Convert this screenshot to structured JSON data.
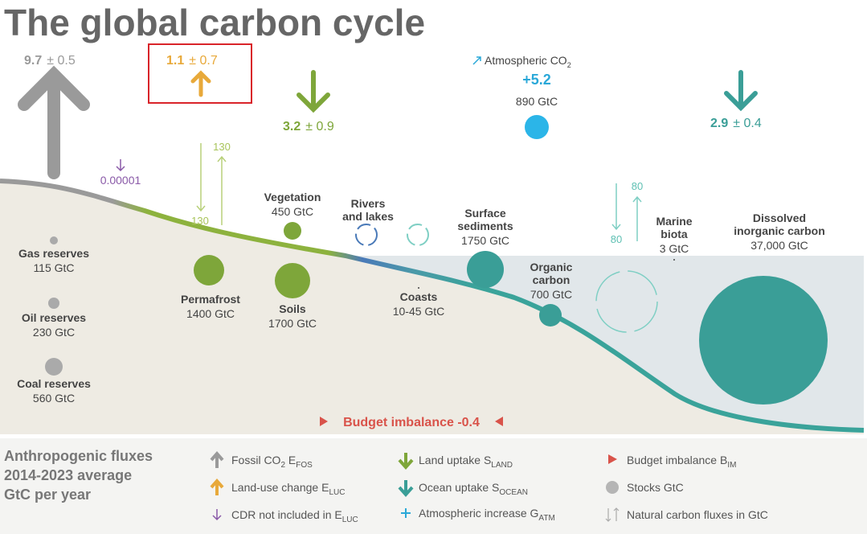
{
  "title": "The global carbon cycle",
  "fluxes": [
    {
      "value": "9.7",
      "uncertainty": "± 0.5"
    },
    {
      "value": "1.1",
      "uncertainty": "± 0.7"
    },
    {
      "value": "3.2",
      "uncertainty": "± 0.9"
    },
    {
      "value": "2.9",
      "uncertainty": "± 0.4"
    }
  ],
  "cdr": "0.00001",
  "atmosphere": {
    "label": [
      "Atmospheric CO",
      "2"
    ],
    "increase": "+5.2",
    "stock": "890 GtC"
  },
  "natural_fluxes": [
    "130",
    "130",
    "80",
    "80"
  ],
  "stocks": [
    {
      "name": [
        "Gas reserves"
      ],
      "amount": "115 GtC"
    },
    {
      "name": [
        "Oil reserves"
      ],
      "amount": "230 GtC"
    },
    {
      "name": [
        "Coal reserves"
      ],
      "amount": "560 GtC"
    },
    {
      "name": [
        "Permafrost"
      ],
      "amount": "1400 GtC"
    },
    {
      "name": [
        "Vegetation"
      ],
      "amount": "450 GtC"
    },
    {
      "name": [
        "Soils"
      ],
      "amount": "1700 GtC"
    },
    {
      "name": [
        "Rivers",
        "and lakes"
      ]
    },
    {
      "name": [
        "Coasts"
      ],
      "amount": "10-45 GtC"
    },
    {
      "name": [
        "Surface",
        "sediments"
      ],
      "amount": "1750 GtC"
    },
    {
      "name": [
        "Organic",
        "carbon"
      ],
      "amount": "700 GtC"
    },
    {
      "name": [
        "Marine",
        "biota"
      ],
      "amount": "3 GtC"
    },
    {
      "name": [
        "Dissolved",
        "inorganic carbon"
      ],
      "amount": "37,000 GtC"
    }
  ],
  "budget_imbalance": "Budget imbalance -0.4",
  "legend": {
    "heading": [
      "Anthropogenic fluxes",
      "2014-2023 average",
      "GtC per year"
    ],
    "items": [
      [
        "Fossil CO",
        "2",
        " E",
        "FOS"
      ],
      [
        "Land-use change E",
        "LUC"
      ],
      [
        "CDR not included in E",
        "LUC"
      ],
      [
        "Land uptake S",
        "LAND"
      ],
      [
        "Ocean uptake S",
        "OCEAN"
      ],
      [
        "Atmospheric increase G",
        "ATM"
      ],
      [
        "Budget imbalance B",
        "IM"
      ],
      [
        "Stocks GtC"
      ],
      [
        "Natural carbon fluxes in GtC"
      ]
    ]
  }
}
